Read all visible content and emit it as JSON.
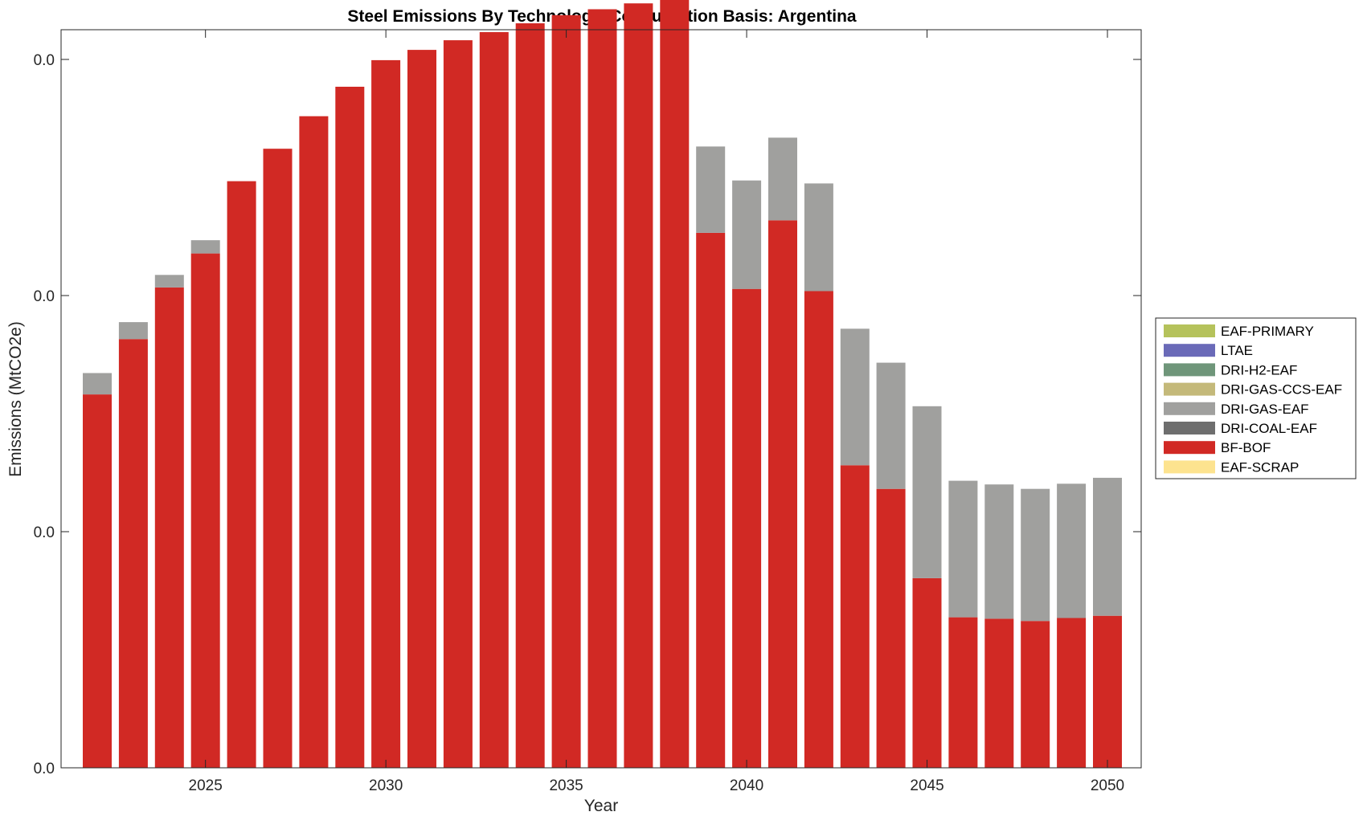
{
  "chart_data": {
    "type": "bar",
    "stacked": true,
    "title": "Steel Emissions By Technology, Consumption Basis: Argentina",
    "xlabel": "Year",
    "ylabel": "Emissions (MtCO2e)",
    "x": [
      2022,
      2023,
      2024,
      2025,
      2026,
      2027,
      2028,
      2029,
      2030,
      2031,
      2032,
      2033,
      2034,
      2035,
      2036,
      2037,
      2038,
      2039,
      2040,
      2041,
      2042,
      2043,
      2044,
      2045,
      2046,
      2047,
      2048,
      2049,
      2050
    ],
    "x_ticks": [
      "2025",
      "2030",
      "2035",
      "2040",
      "2045",
      "2050"
    ],
    "y_ticks": [
      "0.0",
      "0.0",
      "0.0",
      "0.0"
    ],
    "y_scale": "relative (tick labels all print 0.0; values shown as fraction of top tick)",
    "ylim": [
      0,
      1.04
    ],
    "grid": false,
    "legend_position": "outside-right",
    "series": [
      {
        "name": "EAF-PRIMARY",
        "color": "#b5c25b",
        "values": [
          0,
          0,
          0,
          0,
          0,
          0,
          0,
          0,
          0,
          0,
          0,
          0,
          0,
          0,
          0,
          0,
          0,
          0,
          0,
          0,
          0,
          0,
          0,
          0,
          0,
          0,
          0,
          0,
          0
        ]
      },
      {
        "name": "LTAE",
        "color": "#6a6ab8",
        "values": [
          0,
          0,
          0,
          0,
          0,
          0,
          0,
          0,
          0,
          0,
          0,
          0,
          0,
          0,
          0,
          0,
          0,
          0,
          0,
          0,
          0,
          0,
          0,
          0,
          0,
          0,
          0,
          0,
          0
        ]
      },
      {
        "name": "DRI-H2-EAF",
        "color": "#6f967a",
        "values": [
          0,
          0,
          0,
          0,
          0,
          0,
          0,
          0,
          0,
          0,
          0,
          0,
          0,
          0,
          0,
          0,
          0,
          0,
          0,
          0,
          0,
          0,
          0,
          0,
          0,
          0,
          0,
          0,
          0
        ]
      },
      {
        "name": "DRI-GAS-CCS-EAF",
        "color": "#c4b97a",
        "values": [
          0,
          0,
          0,
          0,
          0,
          0,
          0,
          0,
          0,
          0,
          0,
          0,
          0,
          0,
          0,
          0,
          0,
          0,
          0,
          0,
          0,
          0,
          0,
          0,
          0,
          0,
          0,
          0,
          0
        ]
      },
      {
        "name": "DRI-GAS-EAF",
        "color": "#a0a09e",
        "values": [
          0.029,
          0.023,
          0.017,
          0.018,
          0,
          0,
          0,
          0,
          0,
          0,
          0,
          0,
          0,
          0,
          0,
          0,
          0,
          0.117,
          0.147,
          0.112,
          0.146,
          0.185,
          0.171,
          0.233,
          0.185,
          0.182,
          0.179,
          0.182,
          0.187
        ]
      },
      {
        "name": "DRI-COAL-EAF",
        "color": "#6e6e6e",
        "values": [
          0,
          0,
          0,
          0,
          0,
          0,
          0,
          0,
          0,
          0,
          0,
          0,
          0,
          0,
          0,
          0,
          0,
          0,
          0,
          0,
          0,
          0,
          0,
          0,
          0,
          0,
          0,
          0,
          0
        ]
      },
      {
        "name": "BF-BOF",
        "color": "#d12924",
        "values": [
          0.506,
          0.581,
          0.651,
          0.697,
          0.795,
          0.839,
          0.883,
          0.923,
          0.959,
          0.973,
          0.986,
          0.997,
          1.009,
          1.02,
          1.028,
          1.036,
          1.042,
          0.725,
          0.649,
          0.742,
          0.646,
          0.41,
          0.378,
          0.257,
          0.204,
          0.202,
          0.199,
          0.203,
          0.206
        ]
      },
      {
        "name": "EAF-SCRAP",
        "color": "#fde38f",
        "values": [
          0,
          0,
          0,
          0,
          0,
          0,
          0,
          0,
          0,
          0,
          0,
          0,
          0,
          0,
          0,
          0,
          0,
          0,
          0,
          0,
          0,
          0,
          0,
          0,
          0,
          0,
          0,
          0,
          0
        ]
      }
    ],
    "legend_order": [
      "EAF-PRIMARY",
      "LTAE",
      "DRI-H2-EAF",
      "DRI-GAS-CCS-EAF",
      "DRI-GAS-EAF",
      "DRI-COAL-EAF",
      "BF-BOF",
      "EAF-SCRAP"
    ]
  }
}
